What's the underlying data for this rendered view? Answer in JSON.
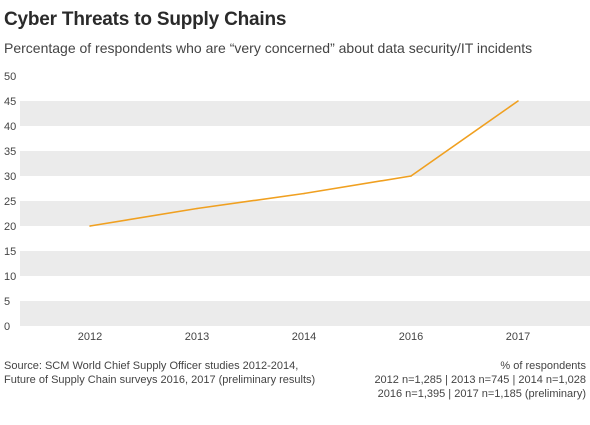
{
  "chart_data": {
    "type": "line",
    "title": "Cyber Threats to Supply Chains",
    "subtitle": "Percentage of respondents who are “very concerned” about data security/IT incidents",
    "categories": [
      "2012",
      "2013",
      "2014",
      "2016",
      "2017"
    ],
    "series": [
      {
        "values": [
          20,
          23.5,
          26.5,
          30,
          45
        ],
        "color": "#f0a020"
      }
    ],
    "yticks": [
      "0",
      "5",
      "10",
      "15",
      "20",
      "25",
      "30",
      "35",
      "40",
      "45",
      "50"
    ],
    "ylim": [
      0,
      50
    ],
    "grid": "alternating horizontal bands",
    "band_color": "#ebebeb",
    "xlabel": "",
    "ylabel": ""
  },
  "footnotes": {
    "source_line1": "Source: SCM World Chief Supply Officer studies 2012-2014,",
    "source_line2": "Future of Supply Chain surveys 2016, 2017 (preliminary results)",
    "legend_line1": "% of respondents",
    "legend_line2": "2012 n=1,285 | 2013 n=745 | 2014 n=1,028",
    "legend_line3": "2016 n=1,395 | 2017 n=1,185 (preliminary)"
  }
}
